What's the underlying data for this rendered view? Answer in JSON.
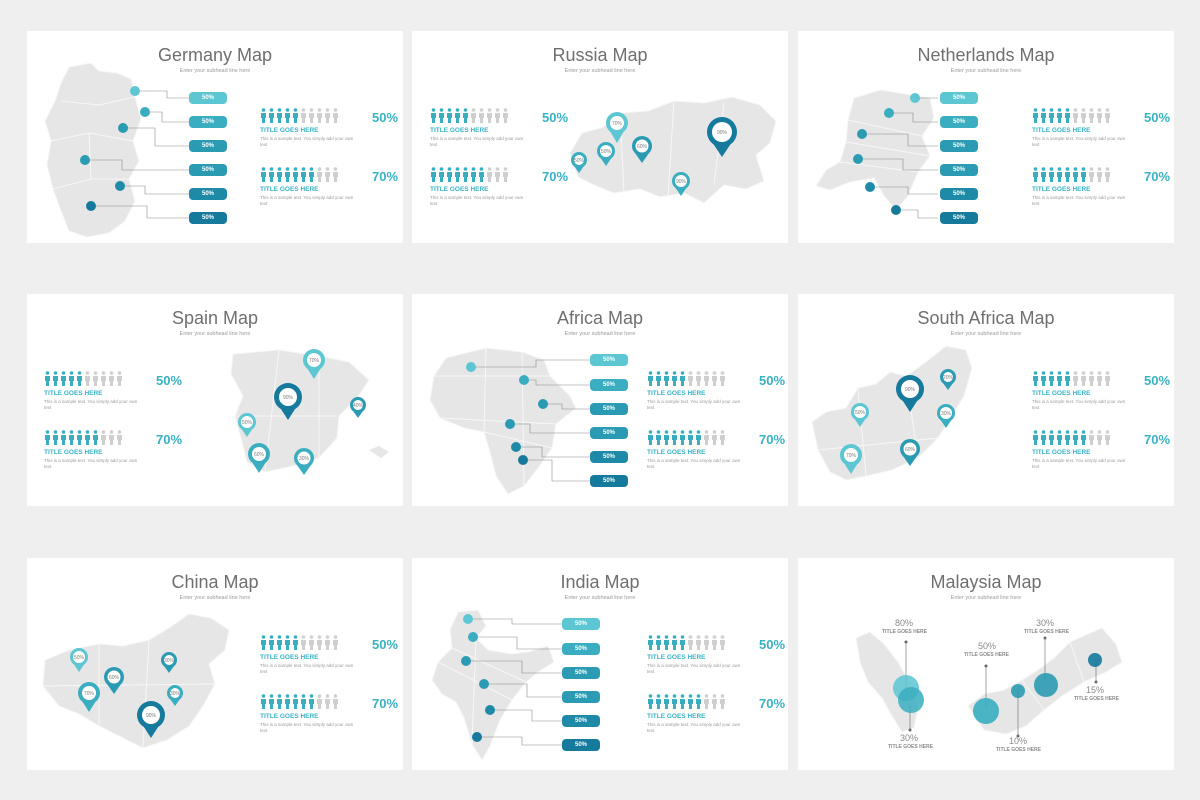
{
  "colors": {
    "teal_light": "#5cc6d2",
    "teal": "#3aaec0",
    "teal_mid": "#2b9bb4",
    "blue_dark": "#157a9c",
    "map_fill": "#e6e6e6",
    "person_gray": "#cfcfcf"
  },
  "icons": {
    "person": "person-icon",
    "pin": "map-pin-icon",
    "marker": "map-marker-dot"
  },
  "slides": {
    "germany": {
      "title": "Germany Map",
      "subtitle": "Enter your subhead line here",
      "pills": [
        "50%",
        "50%",
        "50%",
        "50%",
        "50%",
        "50%"
      ],
      "stats": [
        {
          "filled": 5,
          "total": 10,
          "percent": "50%",
          "title": "TITLE GOES HERE",
          "text": "This is a sample text. You simply add your own text"
        },
        {
          "filled": 7,
          "total": 10,
          "percent": "70%",
          "title": "TITLE GOES HERE",
          "text": "This is a sample text. You simply add your own text"
        }
      ]
    },
    "russia": {
      "title": "Russia Map",
      "subtitle": "Enter your subhead line here",
      "pins": [
        "70%",
        "90%",
        "50%",
        "60%",
        "50%",
        "90%"
      ],
      "stats": [
        {
          "filled": 5,
          "total": 10,
          "percent": "50%",
          "title": "TITLE GOES HERE",
          "text": "This is a sample text. You simply add your own text"
        },
        {
          "filled": 7,
          "total": 10,
          "percent": "70%",
          "title": "TITLE GOES HERE",
          "text": "This is a sample text. You simply add your own text"
        }
      ]
    },
    "netherlands": {
      "title": "Netherlands Map",
      "subtitle": "Enter your subhead line here",
      "pills": [
        "50%",
        "50%",
        "50%",
        "50%",
        "50%",
        "50%"
      ],
      "stats": [
        {
          "filled": 5,
          "total": 10,
          "percent": "50%",
          "title": "TITLE GOES HERE",
          "text": "This is a sample text. You simply add your own text"
        },
        {
          "filled": 7,
          "total": 10,
          "percent": "70%",
          "title": "TITLE GOES HERE",
          "text": "This is a sample text. You simply add your own text"
        }
      ]
    },
    "spain": {
      "title": "Spain Map",
      "subtitle": "Enter your subhead line here",
      "pins": [
        "70%",
        "90%",
        "40%",
        "50%",
        "60%",
        "30%"
      ],
      "stats": [
        {
          "filled": 5,
          "total": 10,
          "percent": "50%",
          "title": "TITLE GOES HERE",
          "text": "This is a sample text. You simply add your own text"
        },
        {
          "filled": 7,
          "total": 10,
          "percent": "70%",
          "title": "TITLE GOES HERE",
          "text": "This is a sample text. You simply add your own text"
        }
      ]
    },
    "africa": {
      "title": "Africa Map",
      "subtitle": "Enter your subhead line here",
      "pills": [
        "50%",
        "50%",
        "50%",
        "50%",
        "50%",
        "50%"
      ],
      "stats": [
        {
          "filled": 5,
          "total": 10,
          "percent": "50%",
          "title": "TITLE GOES HERE",
          "text": "This is a sample text. You simply add your own text"
        },
        {
          "filled": 7,
          "total": 10,
          "percent": "70%",
          "title": "TITLE GOES HERE",
          "text": "This is a sample text. You simply add your own text"
        }
      ]
    },
    "south_africa": {
      "title": "South Africa Map",
      "subtitle": "Enter your subhead line here",
      "pins": [
        "90%",
        "30%",
        "50%",
        "20%",
        "60%",
        "70%"
      ],
      "stats": [
        {
          "filled": 5,
          "total": 10,
          "percent": "50%",
          "title": "TITLE GOES HERE",
          "text": "This is a sample text. You simply add your own text"
        },
        {
          "filled": 7,
          "total": 10,
          "percent": "70%",
          "title": "TITLE GOES HERE",
          "text": "This is a sample text. You simply add your own text"
        }
      ]
    },
    "china": {
      "title": "China Map",
      "subtitle": "Enter your subhead line here",
      "pins": [
        "50%",
        "60%",
        "70%",
        "30%",
        "90%",
        "30%"
      ],
      "stats": [
        {
          "filled": 5,
          "total": 10,
          "percent": "50%",
          "title": "TITLE GOES HERE",
          "text": "This is a sample text. You simply add your own text"
        },
        {
          "filled": 7,
          "total": 10,
          "percent": "70%",
          "title": "TITLE GOES HERE",
          "text": "This is a sample text. You simply add your own text"
        }
      ]
    },
    "india": {
      "title": "India Map",
      "subtitle": "Enter your subhead line here",
      "pills": [
        "50%",
        "50%",
        "50%",
        "50%",
        "50%",
        "50%"
      ],
      "stats": [
        {
          "filled": 5,
          "total": 10,
          "percent": "50%",
          "title": "TITLE GOES HERE",
          "text": "This is a sample text. You simply add your own text"
        },
        {
          "filled": 7,
          "total": 10,
          "percent": "70%",
          "title": "TITLE GOES HERE",
          "text": "This is a sample text. You simply add your own text"
        }
      ]
    },
    "malaysia": {
      "title": "Malaysia Map",
      "subtitle": "Enter your subhead line here",
      "callouts": [
        {
          "value": "80%",
          "label": "TITLE GOES HERE"
        },
        {
          "value": "30%",
          "label": "TITLE GOES HERE"
        },
        {
          "value": "50%",
          "label": "TITLE GOES HERE"
        },
        {
          "value": "10%",
          "label": "TITLE GOES HERE"
        },
        {
          "value": "30%",
          "label": "TITLE GOES HERE"
        },
        {
          "value": "15%",
          "label": "TITLE GOES HERE"
        }
      ]
    }
  }
}
